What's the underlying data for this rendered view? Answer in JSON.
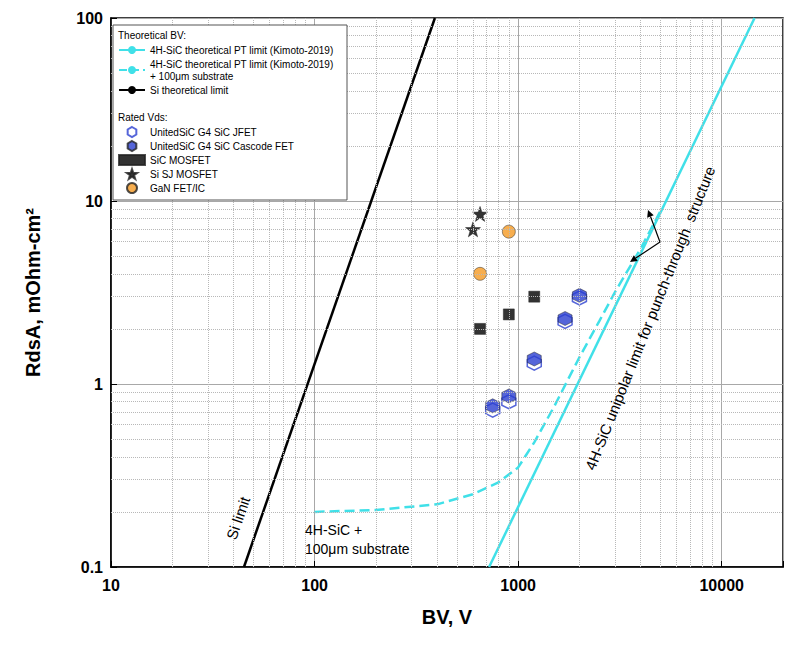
{
  "chart_data": {
    "type": "scatter",
    "log": true,
    "grid": true,
    "legend": "upper left",
    "x_label": "BV, V",
    "y_label": "RdsA, mOhm-cm²",
    "xlim": [
      10,
      20000
    ],
    "ylim": [
      0.1,
      100
    ],
    "xticks": [
      10,
      100,
      1000,
      10000
    ],
    "yticks": [
      0.1,
      1,
      10,
      100
    ],
    "series": [
      {
        "name": "4H-SiC theoretical PT limit (Kimoto-2019)",
        "group": "Theoretical BV:",
        "type": "line",
        "color": "#40e0e8",
        "line_style": "solid",
        "x": [
          720,
          14500
        ],
        "values": [
          0.1,
          100
        ]
      },
      {
        "name": "4H-SiC theoretical PT limit (Kimoto-2019) + 100μm substrate",
        "group": "Theoretical BV:",
        "type": "line",
        "color": "#40e0e8",
        "line_style": "dashed",
        "x": [
          100,
          200,
          400,
          600,
          800,
          1000,
          1200,
          1500,
          2000,
          2500,
          3000,
          4000,
          5000
        ],
        "values": [
          0.2,
          0.205,
          0.22,
          0.25,
          0.29,
          0.35,
          0.48,
          0.75,
          1.4,
          2.2,
          3.2,
          5.5,
          8.8
        ]
      },
      {
        "name": "Si theoretical limit",
        "group": "Theoretical BV:",
        "type": "line",
        "color": "#000000",
        "line_style": "solid",
        "x": [
          45,
          390
        ],
        "values": [
          0.1,
          100
        ]
      },
      {
        "name": "UnitedSiC G4 SiC JFET",
        "group": "Rated Vds:",
        "type": "scatter",
        "color": "#2a3fd0",
        "marker": "hexagon_open",
        "x": [
          750,
          900,
          1200,
          1700,
          2000
        ],
        "values": [
          0.72,
          0.8,
          1.3,
          2.2,
          2.95
        ]
      },
      {
        "name": "UnitedSiC G4 SiC Cascode FET",
        "group": "Rated Vds:",
        "type": "scatter",
        "color": "#2a3fd0",
        "marker": "hexagon",
        "x": [
          750,
          900,
          1200,
          1700,
          2000
        ],
        "values": [
          0.76,
          0.86,
          1.37,
          2.28,
          3.05
        ]
      },
      {
        "name": "SiC MOSFET",
        "group": "Rated Vds:",
        "type": "scatter",
        "color": "#000000",
        "marker": "square",
        "x": [
          650,
          900,
          1200
        ],
        "values": [
          2.0,
          2.4,
          3.0
        ]
      },
      {
        "name": "Si SJ MOSFET",
        "group": "Rated Vds:",
        "type": "scatter",
        "color": "#000000",
        "marker": "star",
        "x": [
          600,
          650
        ],
        "values": [
          7.0,
          8.5
        ]
      },
      {
        "name": "GaN FET/IC",
        "group": "Rated Vds:",
        "type": "scatter",
        "color": "#f59a23",
        "marker": "circle",
        "x": [
          650,
          900
        ],
        "values": [
          4.0,
          6.8
        ]
      }
    ],
    "annotations": [
      "Si limit",
      "4H-SiC +\n100μm substrate",
      "4H-SiC unipolar limit for punch-through  structure"
    ]
  }
}
